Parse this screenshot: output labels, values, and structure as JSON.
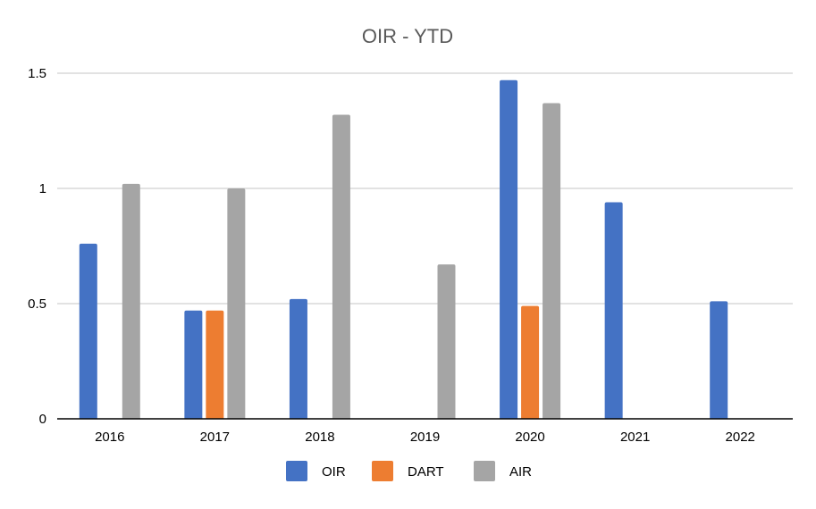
{
  "chart_data": {
    "type": "bar",
    "title": "OIR - YTD",
    "xlabel": "",
    "ylabel": "",
    "categories": [
      "2016",
      "2017",
      "2018",
      "2019",
      "2020",
      "2021",
      "2022"
    ],
    "ylim": [
      0,
      1.5
    ],
    "yticks": [
      0,
      0.5,
      1,
      1.5
    ],
    "ytick_labels": [
      "0",
      "0.5",
      "1",
      "1.5"
    ],
    "grid": true,
    "legend_position": "bottom",
    "series": [
      {
        "name": "OIR",
        "color": "#4472C4",
        "values": [
          0.76,
          0.47,
          0.52,
          null,
          1.47,
          0.94,
          0.51
        ]
      },
      {
        "name": "DART",
        "color": "#ED7D31",
        "values": [
          null,
          0.47,
          null,
          null,
          0.49,
          null,
          null
        ]
      },
      {
        "name": "AIR",
        "color": "#A5A5A5",
        "values": [
          1.02,
          1.0,
          1.32,
          0.67,
          1.37,
          null,
          null
        ]
      }
    ],
    "colors": {
      "title": "#595959",
      "tick_text": "#000000",
      "gridline": "#D9D9D9",
      "axis": "#000000"
    }
  }
}
